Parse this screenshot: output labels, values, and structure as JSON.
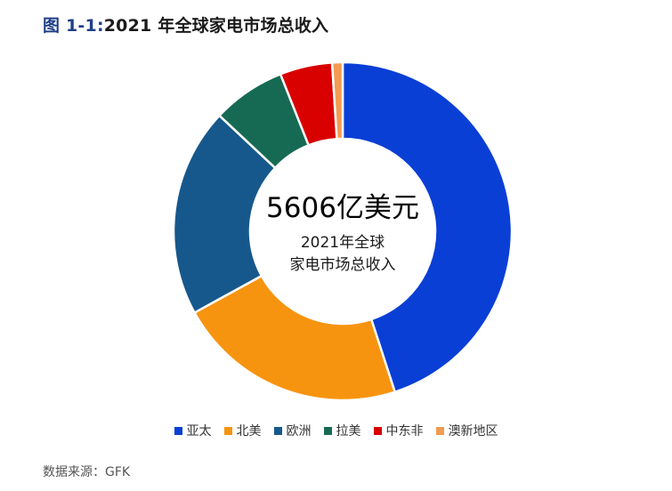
{
  "title_prefix": "图 1-1:",
  "title_text": "2021 年全球家电市场总收入",
  "source": "数据来源：GFK",
  "chart_data": {
    "type": "pie",
    "donut": true,
    "center_value": "5606亿美元",
    "center_label_line1": "2021年全球",
    "center_label_line2": "家电市场总收入",
    "legend_position": "bottom",
    "categories": [
      "亚太",
      "北美",
      "欧洲",
      "拉美",
      "中东非",
      "澳新地区"
    ],
    "values": [
      45,
      22,
      20,
      7,
      5,
      1
    ],
    "unit": "%",
    "colors": [
      "#0a3fd6",
      "#f7940f",
      "#17588c",
      "#166a53",
      "#d90000",
      "#f39b51"
    ]
  }
}
